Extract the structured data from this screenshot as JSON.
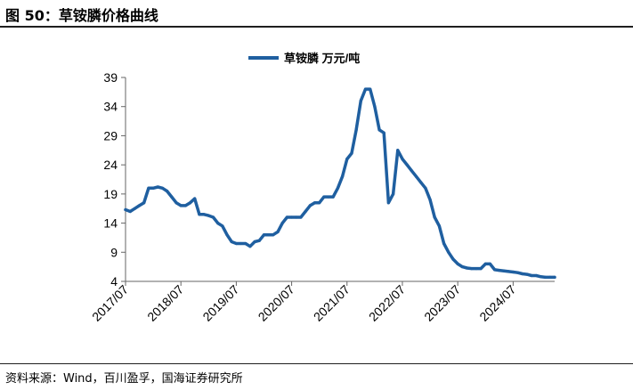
{
  "header": {
    "title": "图 50：草铵膦价格曲线"
  },
  "footer": {
    "source": "资料来源：Wind，百川盈孚，国海证券研究所"
  },
  "colors": {
    "series": "#1F5FA0",
    "axis": "#666666",
    "grid": "#d9d9d9",
    "rule": "#1f1f1f"
  },
  "chart_data": {
    "type": "line",
    "title": "",
    "xlabel": "",
    "ylabel": "",
    "ylim": [
      4,
      39
    ],
    "yticks": [
      4,
      9,
      14,
      19,
      24,
      29,
      34,
      39
    ],
    "xlim": [
      "2017/07",
      "2025/04"
    ],
    "xticks": [
      "2017/07",
      "2018/07",
      "2019/07",
      "2020/07",
      "2021/07",
      "2022/07",
      "2023/07",
      "2024/07"
    ],
    "grid": false,
    "legend": "top-center",
    "series": [
      {
        "name": "草铵膦 万元/吨",
        "color": "#1F5FA0",
        "points": [
          [
            "2017/07",
            16.3
          ],
          [
            "2017/08",
            16.0
          ],
          [
            "2017/09",
            16.5
          ],
          [
            "2017/10",
            17.0
          ],
          [
            "2017/11",
            17.5
          ],
          [
            "2017/12",
            20.0
          ],
          [
            "2018/01",
            20.0
          ],
          [
            "2018/02",
            20.2
          ],
          [
            "2018/03",
            20.0
          ],
          [
            "2018/04",
            19.5
          ],
          [
            "2018/05",
            18.5
          ],
          [
            "2018/06",
            17.5
          ],
          [
            "2018/07",
            17.0
          ],
          [
            "2018/08",
            17.0
          ],
          [
            "2018/09",
            17.5
          ],
          [
            "2018/10",
            18.2
          ],
          [
            "2018/11",
            15.5
          ],
          [
            "2018/12",
            15.5
          ],
          [
            "2019/01",
            15.3
          ],
          [
            "2019/02",
            15.0
          ],
          [
            "2019/03",
            14.0
          ],
          [
            "2019/04",
            13.5
          ],
          [
            "2019/05",
            12.0
          ],
          [
            "2019/06",
            10.8
          ],
          [
            "2019/07",
            10.5
          ],
          [
            "2019/08",
            10.5
          ],
          [
            "2019/09",
            10.5
          ],
          [
            "2019/10",
            10.0
          ],
          [
            "2019/11",
            10.8
          ],
          [
            "2019/12",
            11.0
          ],
          [
            "2020/01",
            12.0
          ],
          [
            "2020/02",
            12.0
          ],
          [
            "2020/03",
            12.0
          ],
          [
            "2020/04",
            12.5
          ],
          [
            "2020/05",
            14.0
          ],
          [
            "2020/06",
            15.0
          ],
          [
            "2020/07",
            15.0
          ],
          [
            "2020/08",
            15.0
          ],
          [
            "2020/09",
            15.0
          ],
          [
            "2020/10",
            16.0
          ],
          [
            "2020/11",
            17.0
          ],
          [
            "2020/12",
            17.5
          ],
          [
            "2021/01",
            17.5
          ],
          [
            "2021/02",
            18.5
          ],
          [
            "2021/03",
            18.5
          ],
          [
            "2021/04",
            18.5
          ],
          [
            "2021/05",
            20.0
          ],
          [
            "2021/06",
            22.0
          ],
          [
            "2021/07",
            25.0
          ],
          [
            "2021/08",
            26.0
          ],
          [
            "2021/09",
            30.0
          ],
          [
            "2021/10",
            35.0
          ],
          [
            "2021/11",
            37.0
          ],
          [
            "2021/12",
            37.0
          ],
          [
            "2022/01",
            34.0
          ],
          [
            "2022/02",
            30.0
          ],
          [
            "2022/03",
            29.5
          ],
          [
            "2022/04",
            17.5
          ],
          [
            "2022/05",
            19.0
          ],
          [
            "2022/06",
            26.5
          ],
          [
            "2022/07",
            25.0
          ],
          [
            "2022/08",
            24.0
          ],
          [
            "2022/09",
            23.0
          ],
          [
            "2022/10",
            22.0
          ],
          [
            "2022/11",
            21.0
          ],
          [
            "2022/12",
            20.0
          ],
          [
            "2023/01",
            18.0
          ],
          [
            "2023/02",
            15.0
          ],
          [
            "2023/03",
            13.5
          ],
          [
            "2023/04",
            10.5
          ],
          [
            "2023/05",
            9.0
          ],
          [
            "2023/06",
            7.8
          ],
          [
            "2023/07",
            7.0
          ],
          [
            "2023/08",
            6.5
          ],
          [
            "2023/09",
            6.3
          ],
          [
            "2023/10",
            6.2
          ],
          [
            "2023/11",
            6.2
          ],
          [
            "2023/12",
            6.2
          ],
          [
            "2024/01",
            7.0
          ],
          [
            "2024/02",
            7.0
          ],
          [
            "2024/03",
            6.0
          ],
          [
            "2024/04",
            5.9
          ],
          [
            "2024/05",
            5.8
          ],
          [
            "2024/06",
            5.7
          ],
          [
            "2024/07",
            5.6
          ],
          [
            "2024/08",
            5.5
          ],
          [
            "2024/09",
            5.3
          ],
          [
            "2024/10",
            5.2
          ],
          [
            "2024/11",
            5.0
          ],
          [
            "2024/12",
            5.0
          ],
          [
            "2025/01",
            4.8
          ],
          [
            "2025/02",
            4.7
          ],
          [
            "2025/03",
            4.7
          ],
          [
            "2025/04",
            4.7
          ]
        ]
      }
    ]
  }
}
